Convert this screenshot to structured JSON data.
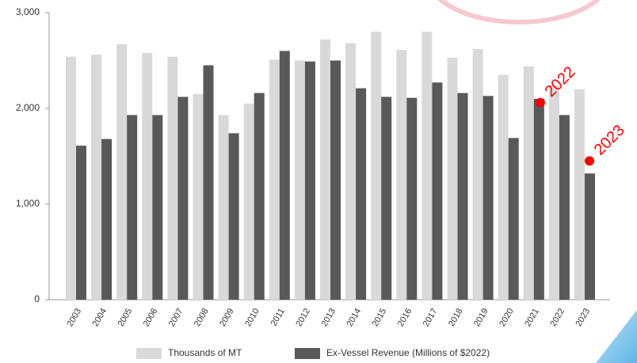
{
  "chart_data": {
    "type": "bar",
    "categories": [
      "2003",
      "2004",
      "2005",
      "2006",
      "2007",
      "2008",
      "2009",
      "2010",
      "2011",
      "2012",
      "2013",
      "2014",
      "2015",
      "2016",
      "2017",
      "2018",
      "2019",
      "2020",
      "2021",
      "2022",
      "2023"
    ],
    "series": [
      {
        "name": "Thousands of MT",
        "color": "#d9d9d9",
        "values": [
          2540,
          2560,
          2670,
          2580,
          2540,
          2150,
          1930,
          2050,
          2510,
          2500,
          2720,
          2680,
          2800,
          2610,
          2800,
          2530,
          2620,
          2350,
          2440,
          2240,
          2200
        ]
      },
      {
        "name": "Ex-Vessel Revenue (Millions of $2022)",
        "color": "#595959",
        "values": [
          1610,
          1680,
          1930,
          1930,
          2120,
          2450,
          1740,
          2160,
          2600,
          2490,
          2500,
          2210,
          2120,
          2110,
          2270,
          2160,
          2130,
          1690,
          2100,
          1930,
          1320
        ]
      }
    ],
    "ylim": [
      0,
      3000
    ],
    "yticks": [
      0,
      {
        "value": 1000,
        "label": "1,000"
      },
      {
        "value": 2000,
        "label": "2,000"
      },
      {
        "value": 3000,
        "label": "3,000"
      }
    ],
    "annotations": [
      {
        "x": "2022",
        "label": "2022",
        "value": 2060,
        "color": "#ff0000"
      },
      {
        "x": "2023",
        "label": "2023",
        "value": 1450,
        "color": "#ff0000"
      }
    ],
    "legend": "bottom"
  }
}
